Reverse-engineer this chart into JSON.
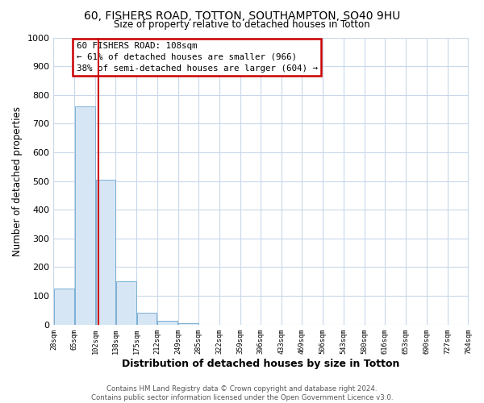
{
  "title_line1": "60, FISHERS ROAD, TOTTON, SOUTHAMPTON, SO40 9HU",
  "title_line2": "Size of property relative to detached houses in Totton",
  "xlabel": "Distribution of detached houses by size in Totton",
  "ylabel": "Number of detached properties",
  "bar_edges": [
    28,
    65,
    102,
    138,
    175,
    212,
    249,
    285,
    322,
    359,
    396,
    433,
    469,
    506,
    543,
    580,
    616,
    653,
    690,
    727,
    764
  ],
  "bar_heights": [
    125,
    760,
    505,
    150,
    40,
    12,
    5,
    0,
    0,
    0,
    0,
    0,
    0,
    0,
    0,
    0,
    0,
    0,
    0,
    0
  ],
  "bar_color": "#d6e6f5",
  "bar_edge_color": "#7bafd4",
  "property_line_x": 108,
  "property_line_color": "#cc0000",
  "annotation_text_line1": "60 FISHERS ROAD: 108sqm",
  "annotation_text_line2": "← 61% of detached houses are smaller (966)",
  "annotation_text_line3": "38% of semi-detached houses are larger (604) →",
  "annotation_box_color": "#cc0000",
  "ylim": [
    0,
    1000
  ],
  "yticks": [
    0,
    100,
    200,
    300,
    400,
    500,
    600,
    700,
    800,
    900,
    1000
  ],
  "tick_labels": [
    "28sqm",
    "65sqm",
    "102sqm",
    "138sqm",
    "175sqm",
    "212sqm",
    "249sqm",
    "285sqm",
    "322sqm",
    "359sqm",
    "396sqm",
    "433sqm",
    "469sqm",
    "506sqm",
    "543sqm",
    "580sqm",
    "616sqm",
    "653sqm",
    "690sqm",
    "727sqm",
    "764sqm"
  ],
  "footnote_line1": "Contains HM Land Registry data © Crown copyright and database right 2024.",
  "footnote_line2": "Contains public sector information licensed under the Open Government Licence v3.0.",
  "background_color": "#ffffff",
  "grid_color": "#c8d8ea"
}
